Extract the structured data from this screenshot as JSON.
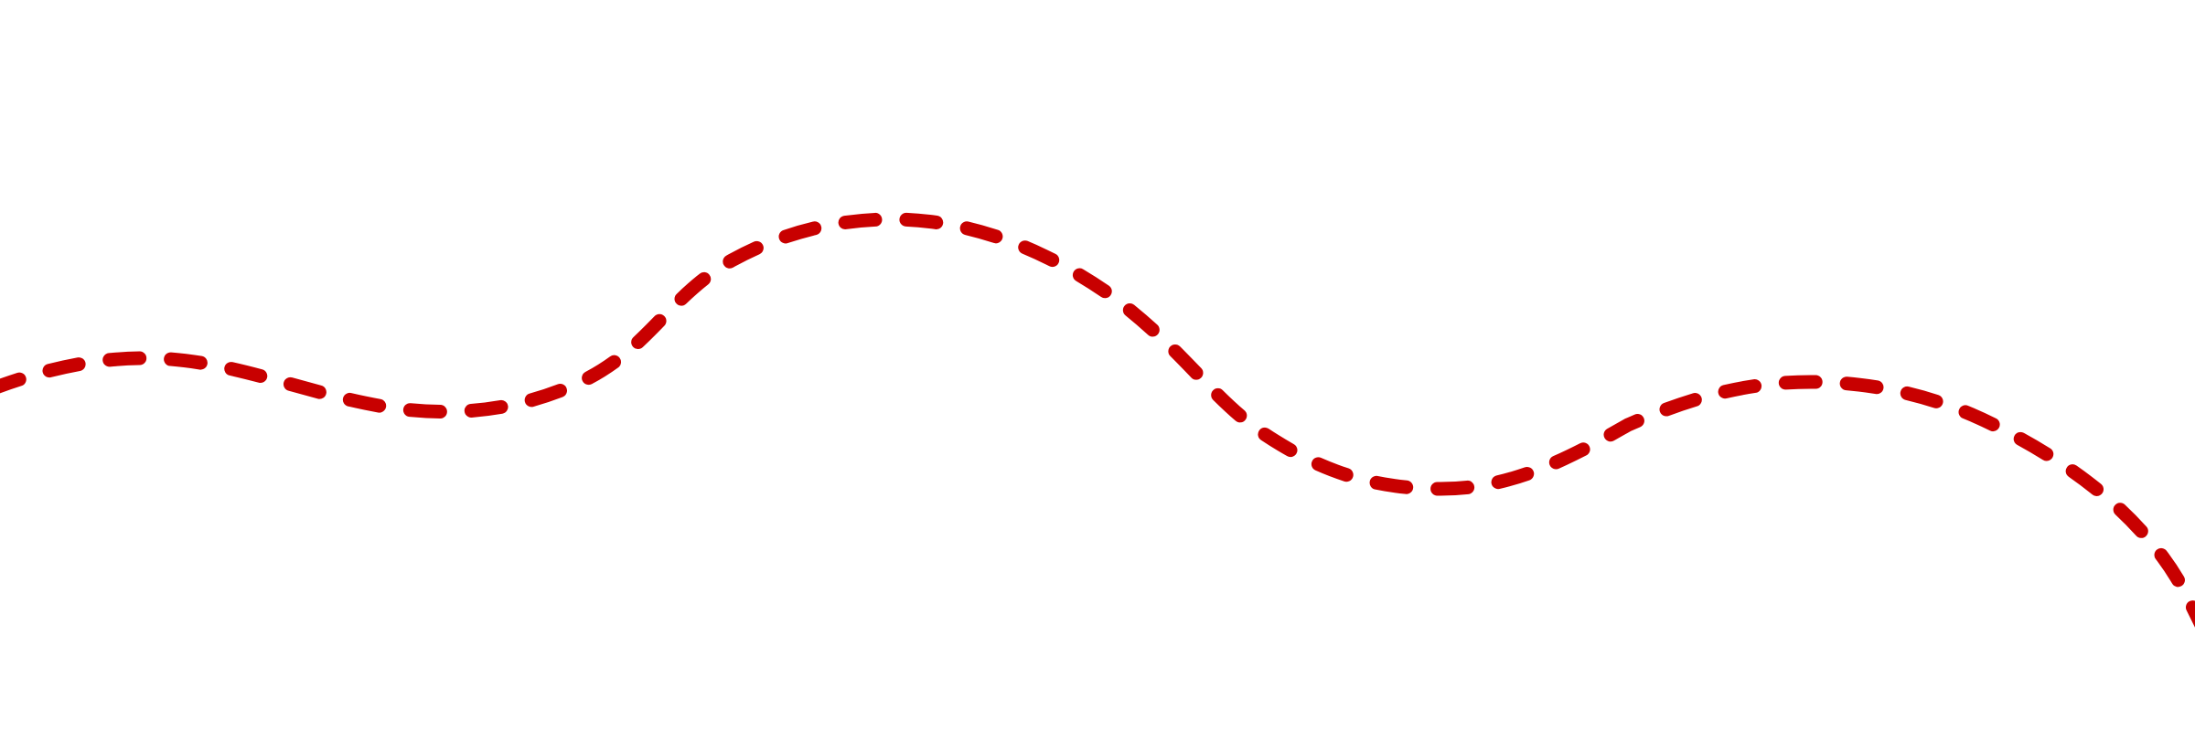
{
  "scene": {
    "background_color": "#ffffff",
    "line_color": "#c80000",
    "line_style": "dashed",
    "line_cap": "round",
    "shape": "wavy-curve"
  }
}
